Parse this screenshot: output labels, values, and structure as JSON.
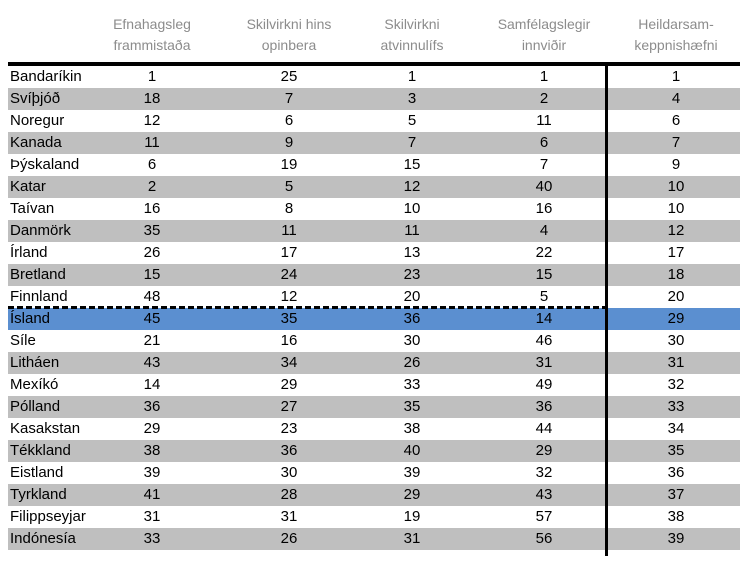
{
  "headers": [
    "",
    "Efnahagsleg\nframmistaða",
    "Skilvirkni hins\nopinbera",
    "Skilvirkni\natvinnulífs",
    "Samfélagslegir\ninnviðir",
    "Heildarsam-\nkeppnishæfni"
  ],
  "rows": [
    {
      "country": "Bandaríkin",
      "v": [
        "1",
        "25",
        "1",
        "1",
        "1"
      ]
    },
    {
      "country": "Svíþjóð",
      "v": [
        "18",
        "7",
        "3",
        "2",
        "4"
      ]
    },
    {
      "country": "Noregur",
      "v": [
        "12",
        "6",
        "5",
        "11",
        "6"
      ]
    },
    {
      "country": "Kanada",
      "v": [
        "11",
        "9",
        "7",
        "6",
        "7"
      ]
    },
    {
      "country": "Þýskaland",
      "v": [
        "6",
        "19",
        "15",
        "7",
        "9"
      ]
    },
    {
      "country": "Katar",
      "v": [
        "2",
        "5",
        "12",
        "40",
        "10"
      ]
    },
    {
      "country": "Taívan",
      "v": [
        "16",
        "8",
        "10",
        "16",
        "10"
      ]
    },
    {
      "country": "Danmörk",
      "v": [
        "35",
        "11",
        "11",
        "4",
        "12"
      ]
    },
    {
      "country": "Írland",
      "v": [
        "26",
        "17",
        "13",
        "22",
        "17"
      ]
    },
    {
      "country": "Bretland",
      "v": [
        "15",
        "24",
        "23",
        "15",
        "18"
      ]
    },
    {
      "country": "Finnland",
      "v": [
        "48",
        "12",
        "20",
        "5",
        "20"
      ]
    },
    {
      "country": "Ísland",
      "v": [
        "45",
        "35",
        "36",
        "14",
        "29"
      ]
    },
    {
      "country": "Síle",
      "v": [
        "21",
        "16",
        "30",
        "46",
        "30"
      ]
    },
    {
      "country": "Litháen",
      "v": [
        "43",
        "34",
        "26",
        "31",
        "31"
      ]
    },
    {
      "country": "Mexíkó",
      "v": [
        "14",
        "29",
        "33",
        "49",
        "32"
      ]
    },
    {
      "country": "Pólland",
      "v": [
        "36",
        "27",
        "35",
        "36",
        "33"
      ]
    },
    {
      "country": "Kasakstan",
      "v": [
        "29",
        "23",
        "38",
        "44",
        "34"
      ]
    },
    {
      "country": "Tékkland",
      "v": [
        "38",
        "36",
        "40",
        "29",
        "35"
      ]
    },
    {
      "country": "Eistland",
      "v": [
        "39",
        "30",
        "39",
        "32",
        "36"
      ]
    },
    {
      "country": "Tyrkland",
      "v": [
        "41",
        "28",
        "29",
        "43",
        "37"
      ]
    },
    {
      "country": "Filippseyjar",
      "v": [
        "31",
        "31",
        "19",
        "57",
        "38"
      ]
    },
    {
      "country": "Indónesía",
      "v": [
        "33",
        "26",
        "31",
        "56",
        "39"
      ]
    }
  ],
  "highlight_row": "Ísland",
  "colors": {
    "shade": "#bfbfbf",
    "highlight": "#5b8fd0",
    "header_text": "#8c8c8c"
  }
}
